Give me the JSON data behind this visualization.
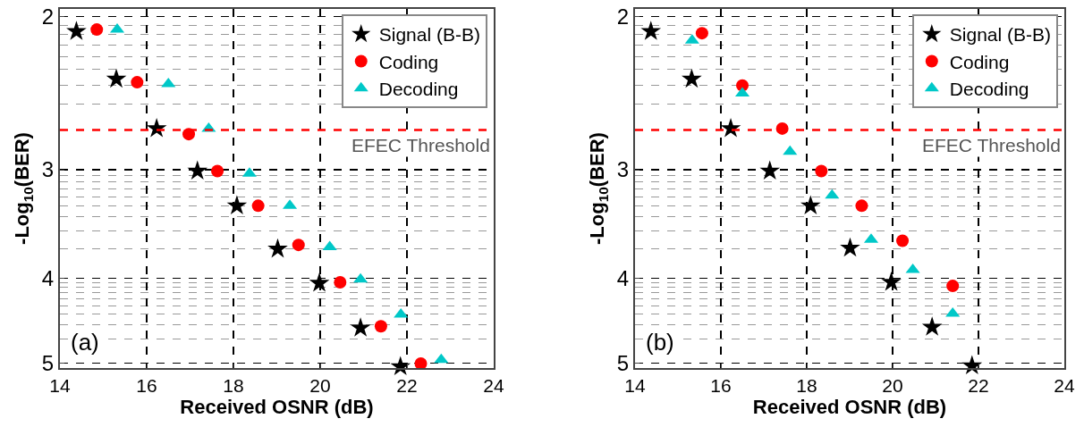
{
  "chart_data": [
    {
      "type": "scatter",
      "xlabel": "Received OSNR (dB)",
      "ylabel": "-Log$_{10}$(BER)",
      "annotations": [
        "(a)"
      ],
      "log": "y",
      "grid": true,
      "legend": "top right",
      "xlim": [
        14,
        24
      ],
      "xticks": [
        14,
        16,
        18,
        20,
        22,
        24
      ],
      "ylim": [
        5.07,
        1.96
      ],
      "yticks": [
        2,
        {
          "value": 2.046,
          "label": null
        },
        {
          "value": 2.097,
          "label": null
        },
        {
          "value": 2.155,
          "label": null
        },
        {
          "value": 2.222,
          "label": null
        },
        {
          "value": 2.301,
          "label": null
        },
        {
          "value": 2.398,
          "label": null
        },
        {
          "value": 2.523,
          "label": null
        },
        {
          "value": 2.699,
          "label": null
        },
        3,
        {
          "value": 3.046,
          "label": null
        },
        {
          "value": 3.097,
          "label": null
        },
        {
          "value": 3.155,
          "label": null
        },
        {
          "value": 3.222,
          "label": null
        },
        {
          "value": 3.301,
          "label": null
        },
        {
          "value": 3.398,
          "label": null
        },
        {
          "value": 3.523,
          "label": null
        },
        {
          "value": 3.699,
          "label": null
        },
        4,
        {
          "value": 4.046,
          "label": null
        },
        {
          "value": 4.097,
          "label": null
        },
        {
          "value": 4.155,
          "label": null
        },
        {
          "value": 4.222,
          "label": null
        },
        {
          "value": 4.301,
          "label": null
        },
        {
          "value": 4.398,
          "label": null
        },
        {
          "value": 4.523,
          "label": null
        },
        {
          "value": 4.699,
          "label": null
        },
        5
      ],
      "ref_lines": [
        {
          "axis": "y",
          "value": 2.7,
          "label": "EFEC Threshold",
          "color": "#ff0000",
          "line_style": "dashed"
        }
      ],
      "series": [
        {
          "name": "Signal (B-B)",
          "color": "#000000",
          "marker": "star",
          "x": [
            14.38,
            15.3,
            16.23,
            17.17,
            18.08,
            19.02,
            19.98,
            20.93,
            21.85
          ],
          "values": [
            2.08,
            2.36,
            2.69,
            3.01,
            3.3,
            3.7,
            4.05,
            4.56,
            5.05
          ]
        },
        {
          "name": "Coding",
          "color": "#ff0000",
          "marker": "circle",
          "x": [
            14.85,
            15.78,
            16.97,
            17.63,
            18.57,
            19.5,
            20.46,
            21.4,
            22.32
          ],
          "values": [
            2.07,
            2.38,
            2.73,
            3.01,
            3.3,
            3.66,
            4.04,
            4.54,
            5.01
          ]
        },
        {
          "name": "Decoding",
          "color": "#00c8c8",
          "marker": "triangle",
          "x": [
            15.32,
            16.5,
            17.43,
            18.37,
            19.3,
            20.22,
            20.93,
            21.86,
            22.79
          ],
          "values": [
            2.07,
            2.39,
            2.69,
            3.03,
            3.3,
            3.68,
            4.01,
            4.4,
            4.96
          ]
        }
      ]
    },
    {
      "type": "scatter",
      "xlabel": "Received OSNR (dB)",
      "ylabel": "-Log$_{10}$(BER)",
      "annotations": [
        "(b)"
      ],
      "log": "y",
      "grid": true,
      "legend": "top right",
      "xlim": [
        14,
        24
      ],
      "xticks": [
        14,
        16,
        18,
        20,
        22,
        24
      ],
      "ylim": [
        5.07,
        1.96
      ],
      "yticks": [
        2,
        {
          "value": 2.046,
          "label": null
        },
        {
          "value": 2.097,
          "label": null
        },
        {
          "value": 2.155,
          "label": null
        },
        {
          "value": 2.222,
          "label": null
        },
        {
          "value": 2.301,
          "label": null
        },
        {
          "value": 2.398,
          "label": null
        },
        {
          "value": 2.523,
          "label": null
        },
        {
          "value": 2.699,
          "label": null
        },
        3,
        {
          "value": 3.046,
          "label": null
        },
        {
          "value": 3.097,
          "label": null
        },
        {
          "value": 3.155,
          "label": null
        },
        {
          "value": 3.222,
          "label": null
        },
        {
          "value": 3.301,
          "label": null
        },
        {
          "value": 3.398,
          "label": null
        },
        {
          "value": 3.523,
          "label": null
        },
        {
          "value": 3.699,
          "label": null
        },
        4,
        {
          "value": 4.046,
          "label": null
        },
        {
          "value": 4.097,
          "label": null
        },
        {
          "value": 4.155,
          "label": null
        },
        {
          "value": 4.222,
          "label": null
        },
        {
          "value": 4.301,
          "label": null
        },
        {
          "value": 4.398,
          "label": null
        },
        {
          "value": 4.523,
          "label": null
        },
        {
          "value": 4.699,
          "label": null
        },
        5
      ],
      "ref_lines": [
        {
          "axis": "y",
          "value": 2.7,
          "label": "EFEC Threshold",
          "color": "#ff0000",
          "line_style": "dashed"
        }
      ],
      "series": [
        {
          "name": "Signal (B-B)",
          "color": "#000000",
          "marker": "star",
          "x": [
            14.37,
            15.32,
            16.23,
            17.14,
            18.09,
            19.01,
            19.97,
            20.92,
            21.85
          ],
          "values": [
            2.08,
            2.36,
            2.69,
            3.01,
            3.3,
            3.69,
            4.04,
            4.55,
            5.04
          ]
        },
        {
          "name": "Coding",
          "color": "#ff0000",
          "marker": "circle",
          "x": [
            15.56,
            16.5,
            17.43,
            18.34,
            19.28,
            20.23,
            21.4
          ],
          "values": [
            2.09,
            2.4,
            2.69,
            3.01,
            3.3,
            3.62,
            4.08
          ]
        },
        {
          "name": "Decoding",
          "color": "#00c8c8",
          "marker": "triangle",
          "x": [
            15.33,
            16.5,
            17.61,
            18.59,
            19.5,
            20.47,
            21.4
          ],
          "values": [
            2.13,
            2.45,
            2.86,
            3.21,
            3.61,
            3.91,
            4.39
          ]
        }
      ]
    }
  ]
}
